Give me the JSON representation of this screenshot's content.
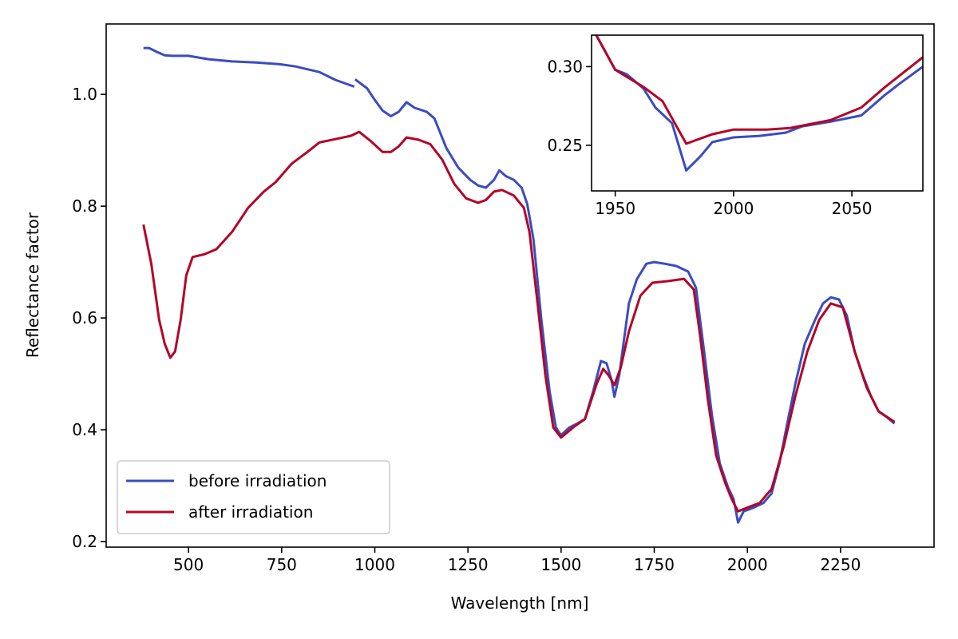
{
  "chart_data": {
    "type": "line",
    "title": "",
    "xlabel": "Wavelength [nm]",
    "ylabel": "Reflectance factor",
    "xlim": [
      279,
      2501
    ],
    "ylim": [
      0.19,
      1.126
    ],
    "xticks": [
      500,
      750,
      1000,
      1250,
      1500,
      1750,
      2000,
      2250
    ],
    "yticks": [
      0.2,
      0.4,
      0.6,
      0.8,
      1.0
    ],
    "ytick_labels": [
      "0.2",
      "0.4",
      "0.6",
      "0.8",
      "1.0"
    ],
    "grid": false,
    "legend_position": "lower-left",
    "series": [
      {
        "name": "before irradiation",
        "color": "#3b4cc0",
        "x": [
          379,
          394,
          415,
          436,
          457,
          500,
          553,
          617,
          681,
          745,
          787,
          851,
          894,
          936,
          945,
          null,
          947,
          979,
          1000,
          1021,
          1043,
          1064,
          1085,
          1107,
          1139,
          1160,
          1192,
          1224,
          1256,
          1277,
          1298,
          1320,
          1334,
          1351,
          1373,
          1394,
          1409,
          1426,
          1447,
          1469,
          1486,
          1500,
          1522,
          1543,
          1564,
          1586,
          1607,
          1622,
          1635,
          1643,
          1656,
          1682,
          1703,
          1729,
          1750,
          1778,
          1809,
          1841,
          1862,
          1884,
          1905,
          1926,
          1948,
          1963,
          1975,
          1990,
          2018,
          2043,
          2065,
          2086,
          2107,
          2129,
          2154,
          2182,
          2203,
          2224,
          2246,
          2267,
          2288,
          2310,
          2331,
          2352,
          2373,
          2395
        ],
        "y": [
          1.083,
          1.083,
          1.076,
          1.07,
          1.069,
          1.069,
          1.063,
          1.059,
          1.057,
          1.054,
          1.05,
          1.04,
          1.026,
          1.016,
          1.014,
          null,
          1.027,
          1.011,
          0.99,
          0.971,
          0.961,
          0.969,
          0.986,
          0.976,
          0.969,
          0.957,
          0.904,
          0.869,
          0.847,
          0.837,
          0.833,
          0.847,
          0.864,
          0.854,
          0.847,
          0.833,
          0.804,
          0.74,
          0.597,
          0.469,
          0.404,
          0.39,
          0.404,
          0.411,
          0.419,
          0.469,
          0.523,
          0.519,
          0.49,
          0.459,
          0.497,
          0.626,
          0.669,
          0.697,
          0.7,
          0.697,
          0.693,
          0.683,
          0.654,
          0.54,
          0.426,
          0.34,
          0.297,
          0.276,
          0.234,
          0.254,
          0.261,
          0.269,
          0.286,
          0.34,
          0.411,
          0.483,
          0.554,
          0.597,
          0.626,
          0.637,
          0.633,
          0.604,
          0.54,
          0.497,
          0.461,
          0.433,
          0.423,
          0.411
        ]
      },
      {
        "name": "after irradiation",
        "color": "#b40426",
        "x": [
          379,
          400,
          421,
          436,
          451,
          464,
          479,
          494,
          511,
          543,
          575,
          617,
          660,
          702,
          734,
          777,
          819,
          851,
          894,
          936,
          958,
          990,
          1021,
          1043,
          1064,
          1085,
          1117,
          1149,
          1181,
          1213,
          1245,
          1277,
          1298,
          1320,
          1341,
          1373,
          1400,
          1415,
          1437,
          1458,
          1479,
          1500,
          1532,
          1564,
          1596,
          1613,
          1628,
          1643,
          1660,
          1682,
          1713,
          1745,
          1788,
          1830,
          1856,
          1873,
          1894,
          1916,
          1941,
          1958,
          1975,
          2001,
          2033,
          2065,
          2097,
          2129,
          2161,
          2193,
          2224,
          2256,
          2288,
          2320,
          2352,
          2395
        ],
        "y": [
          0.767,
          0.697,
          0.597,
          0.554,
          0.529,
          0.54,
          0.597,
          0.676,
          0.709,
          0.714,
          0.723,
          0.754,
          0.797,
          0.826,
          0.843,
          0.876,
          0.897,
          0.914,
          0.92,
          0.926,
          0.933,
          0.916,
          0.897,
          0.897,
          0.907,
          0.923,
          0.919,
          0.911,
          0.883,
          0.84,
          0.814,
          0.806,
          0.811,
          0.826,
          0.829,
          0.819,
          0.797,
          0.754,
          0.626,
          0.497,
          0.404,
          0.386,
          0.404,
          0.419,
          0.483,
          0.509,
          0.497,
          0.48,
          0.511,
          0.576,
          0.64,
          0.663,
          0.666,
          0.67,
          0.651,
          0.569,
          0.454,
          0.354,
          0.304,
          0.276,
          0.254,
          0.261,
          0.269,
          0.294,
          0.369,
          0.461,
          0.54,
          0.597,
          0.626,
          0.619,
          0.54,
          0.476,
          0.433,
          0.414
        ]
      }
    ],
    "inset": {
      "xlim": [
        1940,
        2080
      ],
      "ylim": [
        0.221,
        0.32
      ],
      "xticks": [
        1950,
        2000,
        2050
      ],
      "yticks": [
        0.25,
        0.3
      ],
      "ytick_labels": [
        "0.25",
        "0.30"
      ],
      "series": [
        {
          "name": "before irradiation",
          "color": "#3b4cc0",
          "x": [
            1942,
            1950,
            1955,
            1962,
            1967,
            1974,
            1980,
            1986,
            1991,
            2000,
            2011,
            2022,
            2029,
            2041,
            2054,
            2064,
            2070,
            2080
          ],
          "y": [
            0.32,
            0.298,
            0.295,
            0.286,
            0.274,
            0.264,
            0.234,
            0.243,
            0.252,
            0.255,
            0.256,
            0.258,
            0.262,
            0.265,
            0.269,
            0.282,
            0.289,
            0.3
          ]
        },
        {
          "name": "after irradiation",
          "color": "#b40426",
          "x": [
            1942,
            1950,
            1962,
            1970,
            1980,
            1991,
            2000,
            2014,
            2024,
            2041,
            2054,
            2064,
            2080
          ],
          "y": [
            0.32,
            0.298,
            0.287,
            0.278,
            0.251,
            0.257,
            0.26,
            0.26,
            0.261,
            0.266,
            0.274,
            0.287,
            0.306
          ]
        }
      ]
    }
  }
}
